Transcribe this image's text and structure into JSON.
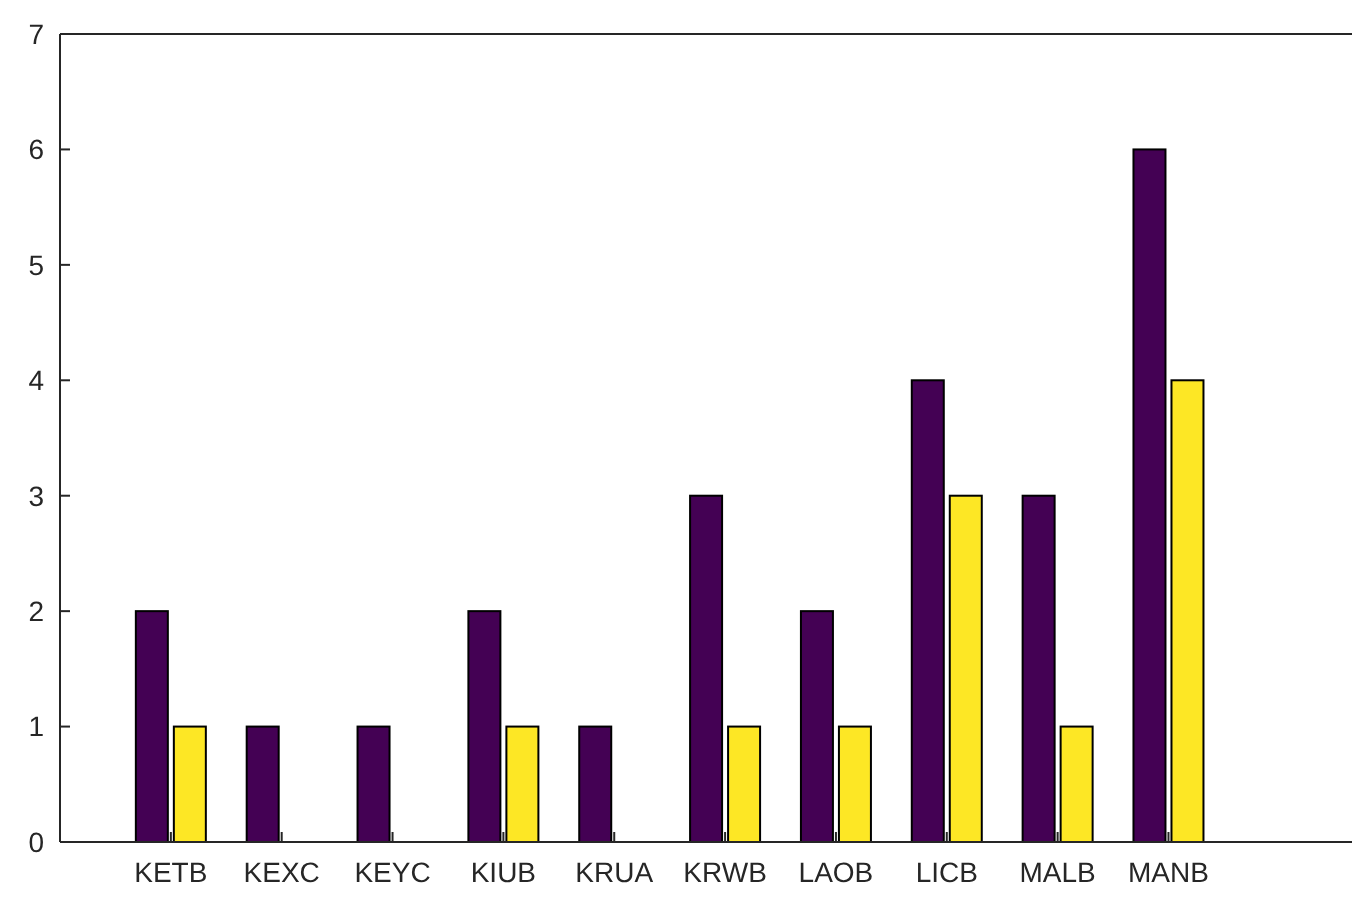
{
  "chart_data": {
    "type": "bar",
    "categories": [
      "KETB",
      "KEXC",
      "KEYC",
      "KIUB",
      "KRUA",
      "KRWB",
      "LAOB",
      "LICB",
      "MALB",
      "MANB"
    ],
    "series": [
      {
        "color": "#440154",
        "values": [
          2,
          1,
          1,
          2,
          1,
          3,
          2,
          4,
          3,
          6
        ]
      },
      {
        "color": "#fde725",
        "values": [
          1,
          0,
          0,
          1,
          0,
          1,
          1,
          3,
          1,
          4
        ]
      }
    ],
    "ylim": [
      0,
      7
    ],
    "yticks": [
      0,
      1,
      2,
      3,
      4,
      5,
      6,
      7
    ],
    "grid": false
  }
}
